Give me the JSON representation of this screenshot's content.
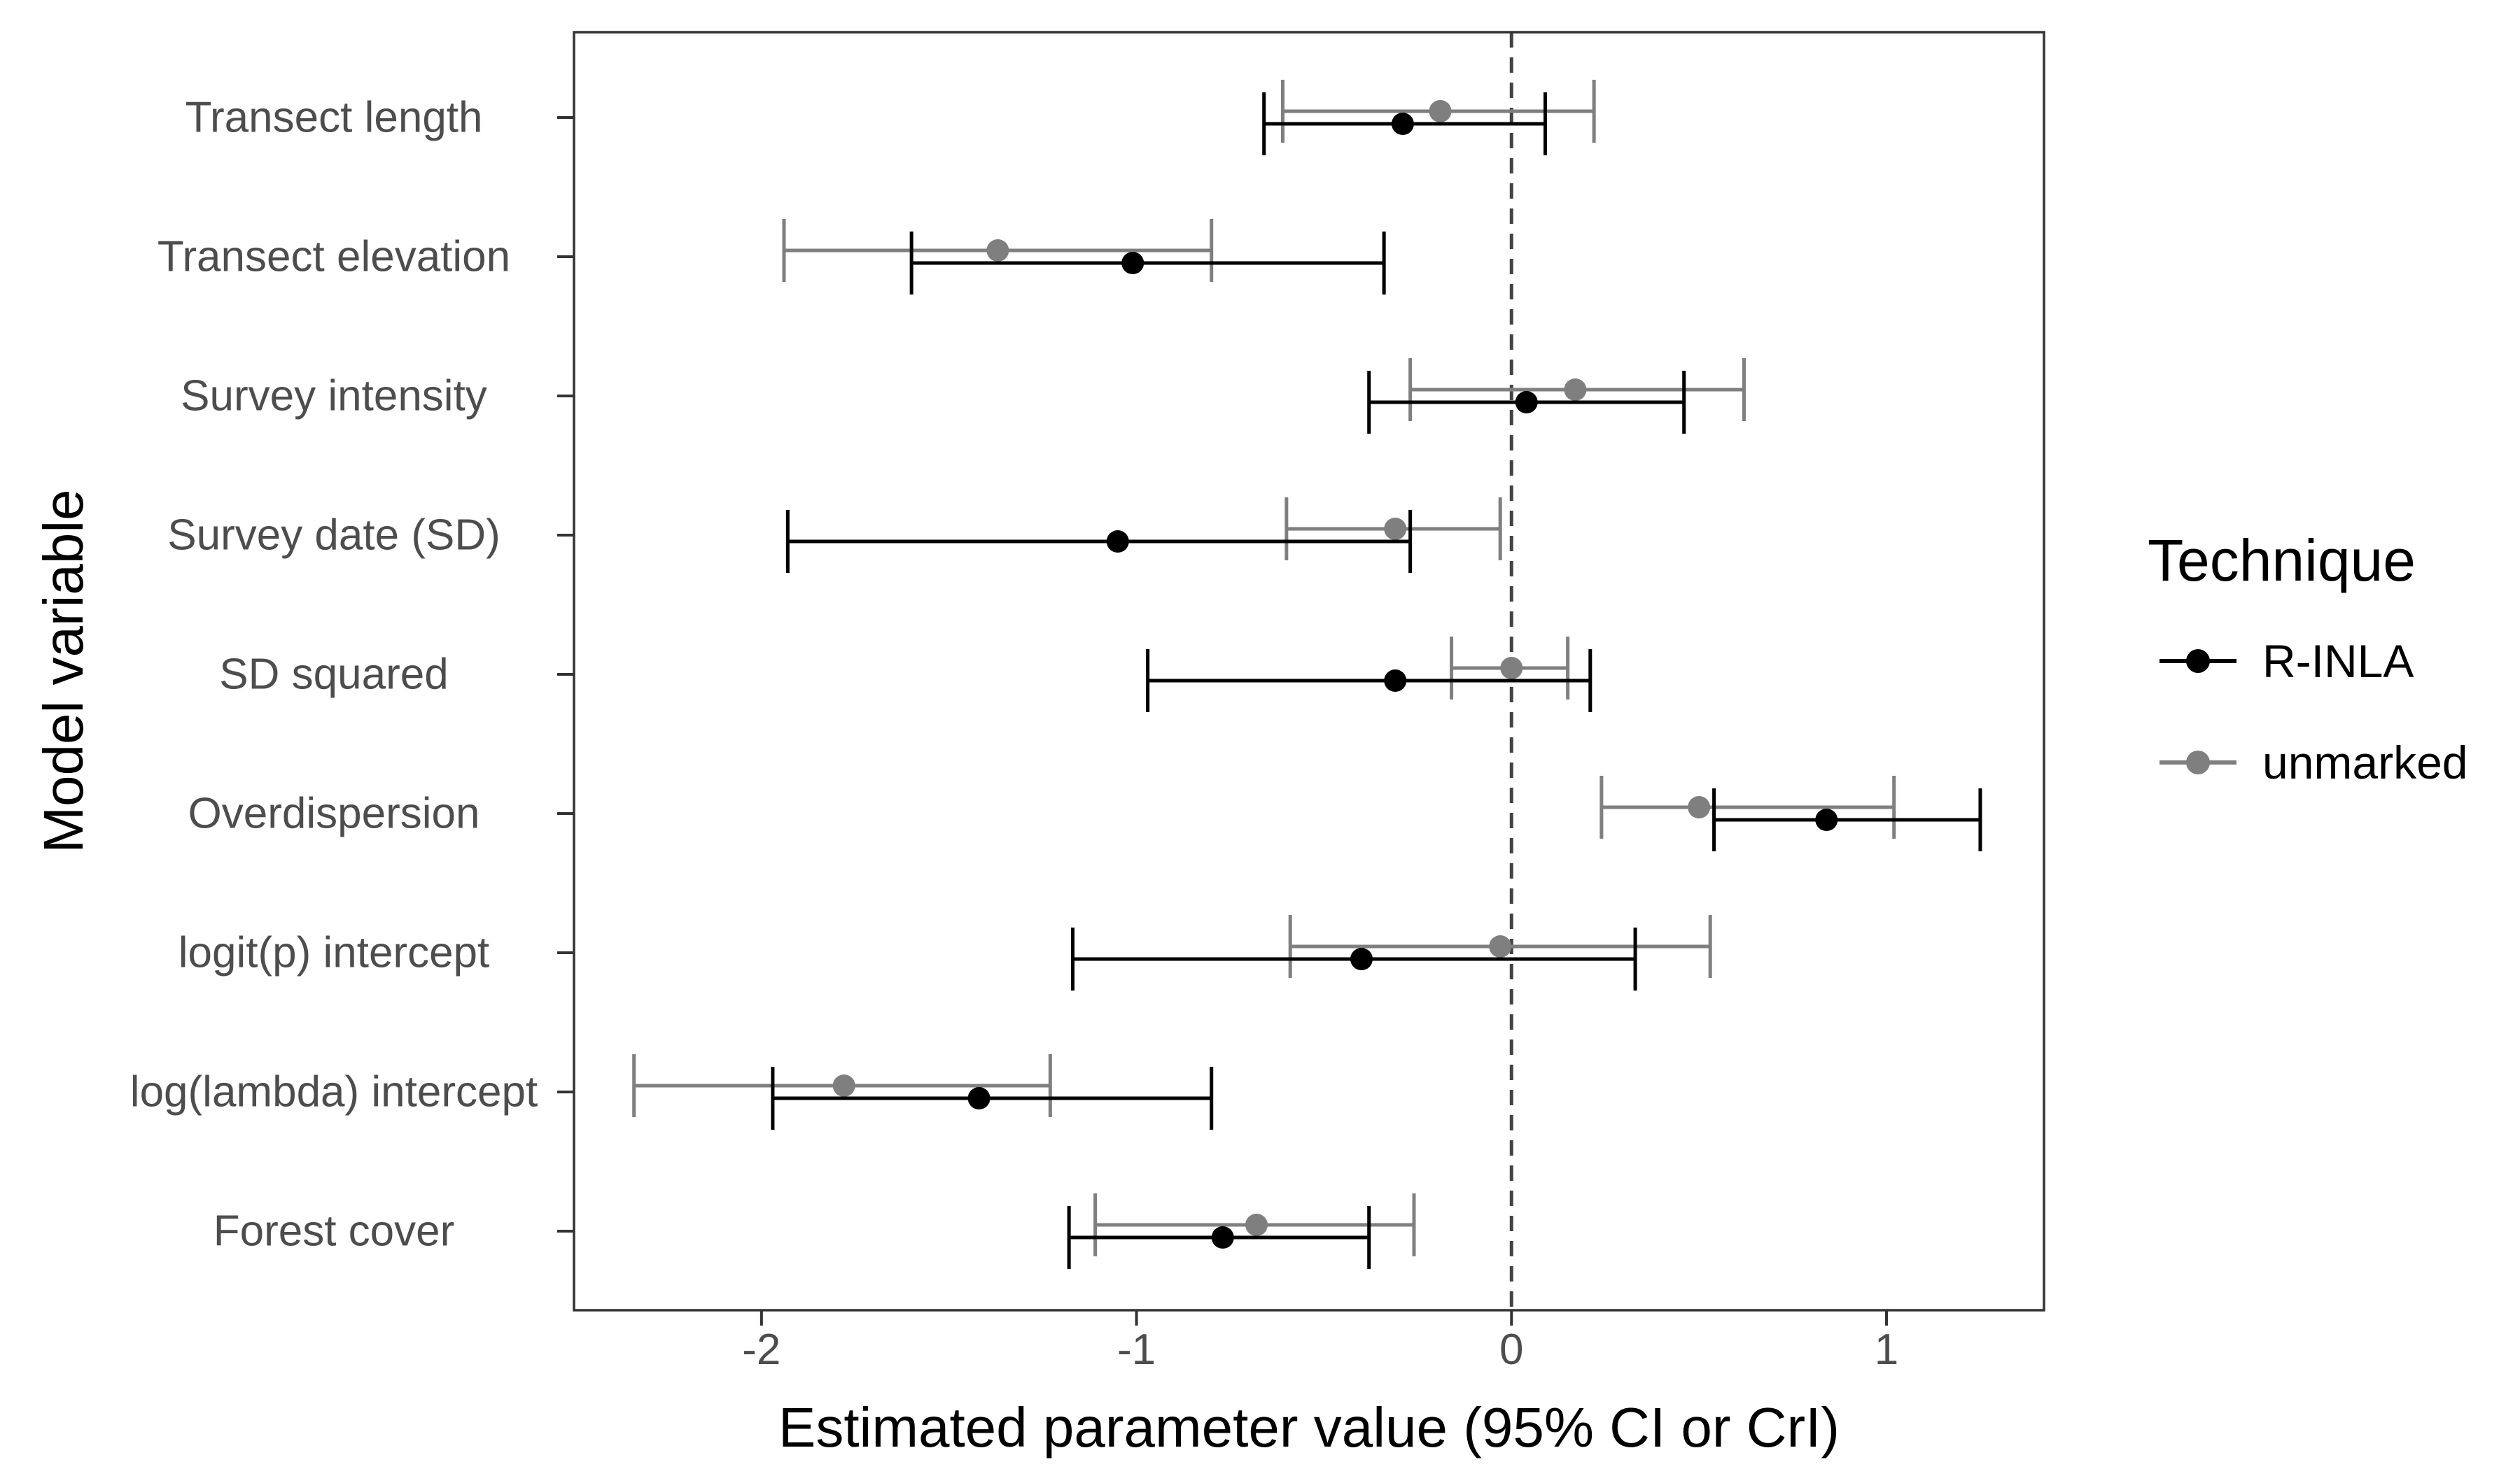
{
  "chart_data": {
    "type": "forest",
    "title": "",
    "xlabel": "Estimated parameter value (95% CI or CrI)",
    "ylabel": "Model variable",
    "xlim": [
      -2.5,
      1.42
    ],
    "x_ticks": [
      -2,
      -1,
      0,
      1
    ],
    "x_tick_labels": [
      "-2",
      "-1",
      "0",
      "1"
    ],
    "reference_line": 0,
    "categories": [
      "Transect length",
      "Transect elevation",
      "Survey intensity",
      "Survey date (SD)",
      "SD squared",
      "Overdispersion",
      "logit(p) intercept",
      "log(lambda) intercept",
      "Forest cover"
    ],
    "legend": {
      "title": "Technique",
      "position": "right"
    },
    "series": [
      {
        "name": "R-INLA",
        "color": "#000000",
        "estimates": [
          -0.29,
          -1.01,
          0.04,
          -1.05,
          -0.31,
          0.84,
          -0.4,
          -1.42,
          -0.77
        ],
        "lower": [
          -0.66,
          -1.6,
          -0.38,
          -1.93,
          -0.97,
          0.54,
          -1.17,
          -1.97,
          -1.18
        ],
        "upper": [
          0.09,
          -0.34,
          0.46,
          -0.27,
          0.21,
          1.25,
          0.33,
          -0.8,
          -0.38
        ]
      },
      {
        "name": "unmarked",
        "color": "#7f7f7f",
        "estimates": [
          -0.19,
          -1.37,
          0.17,
          -0.31,
          0.0,
          0.5,
          -0.03,
          -1.78,
          -0.68
        ],
        "lower": [
          -0.61,
          -1.94,
          -0.27,
          -0.6,
          -0.16,
          0.24,
          -0.59,
          -2.34,
          -1.11
        ],
        "upper": [
          0.22,
          -0.8,
          0.62,
          -0.03,
          0.15,
          1.02,
          0.53,
          -1.23,
          -0.26
        ]
      }
    ]
  }
}
